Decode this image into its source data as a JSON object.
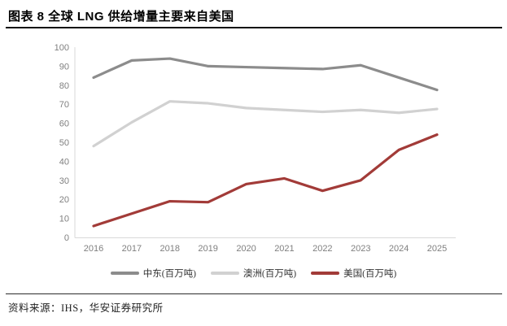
{
  "figure": {
    "title": "图表 8 全球 LNG 供给增量主要来自美国",
    "source": "资料来源：IHS，华安证券研究所"
  },
  "chart_data": {
    "type": "line",
    "title": "图表 8 全球 LNG 供给增量主要来自美国",
    "x": [
      2016,
      2017,
      2018,
      2019,
      2020,
      2021,
      2022,
      2023,
      2024,
      2025
    ],
    "series": [
      {
        "name": "中东(百万吨)",
        "color": "#8C8C8C",
        "values": [
          84,
          93,
          94,
          90,
          89.5,
          89,
          88.5,
          90.5,
          84,
          77.5
        ]
      },
      {
        "name": "澳洲(百万吨)",
        "color": "#D1D1D1",
        "values": [
          48,
          60.5,
          71.5,
          70.5,
          68,
          67,
          66,
          67,
          65.5,
          67.5
        ]
      },
      {
        "name": "美国(百万吨)",
        "color": "#A23B38",
        "values": [
          6,
          12.5,
          19,
          18.5,
          28,
          31,
          24.5,
          30,
          46,
          54
        ]
      }
    ],
    "xlabel": "",
    "ylabel": "",
    "ylim": [
      0,
      100
    ],
    "ytick_step": 10,
    "grid": false,
    "legend_position": "bottom",
    "axis_line_color": "#D9D9D9",
    "tick_label_color": "#7F7F7F"
  }
}
